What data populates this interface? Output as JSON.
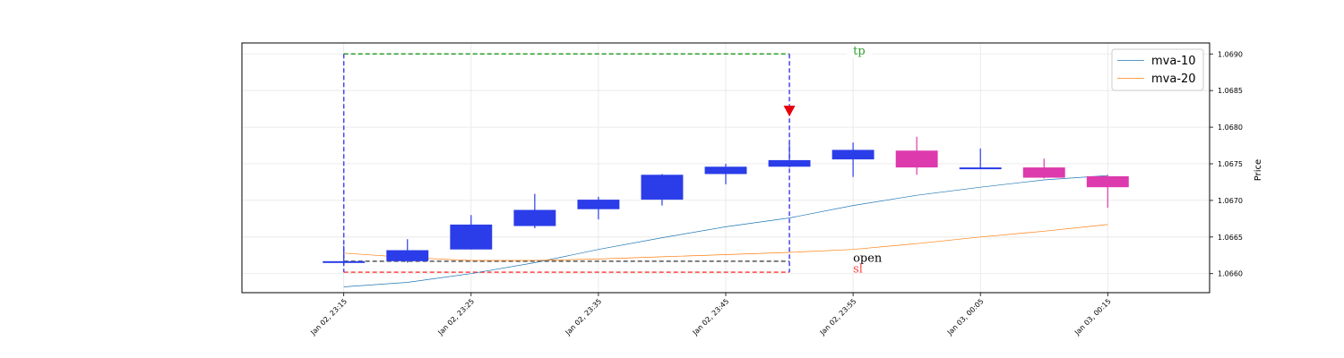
{
  "chart_data": {
    "type": "candlestick",
    "title": "",
    "xlabel": "",
    "ylabel": "Price",
    "ylim": [
      1.06574,
      1.06915
    ],
    "y_ticks": [
      "1.0660",
      "1.0665",
      "1.0670",
      "1.0675",
      "1.0680",
      "1.0685",
      "1.0690"
    ],
    "y_tick_values": [
      1.066,
      1.0665,
      1.067,
      1.0675,
      1.068,
      1.0685,
      1.069
    ],
    "x_ticks": [
      "Jan 02, 23:15",
      "Jan 02, 23:25",
      "Jan 02, 23:35",
      "Jan 02, 23:45",
      "Jan 02, 23:55",
      "Jan 03, 00:05",
      "Jan 03, 00:15"
    ],
    "x_tick_index": [
      0,
      2,
      4,
      6,
      8,
      10,
      12
    ],
    "x_range": [
      -1.6,
      13.6
    ],
    "grid": true,
    "legend_position": "top-right",
    "colors": {
      "up": "#2b3de8",
      "down": "#dd3aad",
      "mva10": "#1f77b4",
      "mva20": "#ff7f0e",
      "tp": "#2ca02c",
      "sl": "#ff4444",
      "open": "#555555",
      "entry_box": "#4444ee",
      "marker": "#e8000b"
    },
    "candles": [
      {
        "time": "Jan 02, 23:15",
        "open": 1.06617,
        "high": 1.06638,
        "low": 1.06612,
        "close": 1.06617
      },
      {
        "time": "Jan 02, 23:20",
        "open": 1.06617,
        "high": 1.06647,
        "low": 1.06615,
        "close": 1.06632
      },
      {
        "time": "Jan 02, 23:25",
        "open": 1.06633,
        "high": 1.0668,
        "low": 1.06633,
        "close": 1.06667
      },
      {
        "time": "Jan 02, 23:30",
        "open": 1.06665,
        "high": 1.06709,
        "low": 1.06662,
        "close": 1.06687
      },
      {
        "time": "Jan 02, 23:35",
        "open": 1.06688,
        "high": 1.06705,
        "low": 1.06674,
        "close": 1.06701
      },
      {
        "time": "Jan 02, 23:40",
        "open": 1.06701,
        "high": 1.06736,
        "low": 1.06693,
        "close": 1.06735
      },
      {
        "time": "Jan 02, 23:45",
        "open": 1.06736,
        "high": 1.0675,
        "low": 1.06722,
        "close": 1.06746
      },
      {
        "time": "Jan 02, 23:50",
        "open": 1.06746,
        "high": 1.06778,
        "low": 1.06745,
        "close": 1.06755
      },
      {
        "time": "Jan 02, 23:55",
        "open": 1.06756,
        "high": 1.06779,
        "low": 1.06732,
        "close": 1.06769
      },
      {
        "time": "Jan 03, 00:00",
        "open": 1.06768,
        "high": 1.06787,
        "low": 1.06735,
        "close": 1.06745
      },
      {
        "time": "Jan 03, 00:05",
        "open": 1.06744,
        "high": 1.06771,
        "low": 1.06743,
        "close": 1.06745
      },
      {
        "time": "Jan 03, 00:10",
        "open": 1.06745,
        "high": 1.06757,
        "low": 1.0673,
        "close": 1.06731
      },
      {
        "time": "Jan 03, 00:15",
        "open": 1.06733,
        "high": 1.06735,
        "low": 1.0669,
        "close": 1.06718
      }
    ],
    "series": [
      {
        "name": "mva-10",
        "x": [
          0,
          1,
          2,
          3,
          4,
          5,
          6,
          7,
          8,
          9,
          10,
          11,
          12
        ],
        "values": [
          1.06582,
          1.06588,
          1.066,
          1.06615,
          1.06633,
          1.06649,
          1.06664,
          1.06676,
          1.06693,
          1.06707,
          1.06718,
          1.06728,
          1.06734
        ]
      },
      {
        "name": "mva-20",
        "x": [
          0,
          1,
          2,
          3,
          4,
          5,
          6,
          7,
          8,
          9,
          10,
          11,
          12
        ],
        "values": [
          1.06628,
          1.06622,
          1.06618,
          1.06618,
          1.0662,
          1.06623,
          1.06626,
          1.06629,
          1.06633,
          1.06641,
          1.0665,
          1.06658,
          1.06667
        ]
      }
    ],
    "trade": {
      "entry_index": 0,
      "exit_index": 7,
      "tp": 1.069,
      "sl": 1.06602,
      "open": 1.06617,
      "marker_price": 1.06822,
      "labels": {
        "tp": "tp",
        "sl": "sl",
        "open": "open"
      },
      "label_index": 8
    }
  }
}
